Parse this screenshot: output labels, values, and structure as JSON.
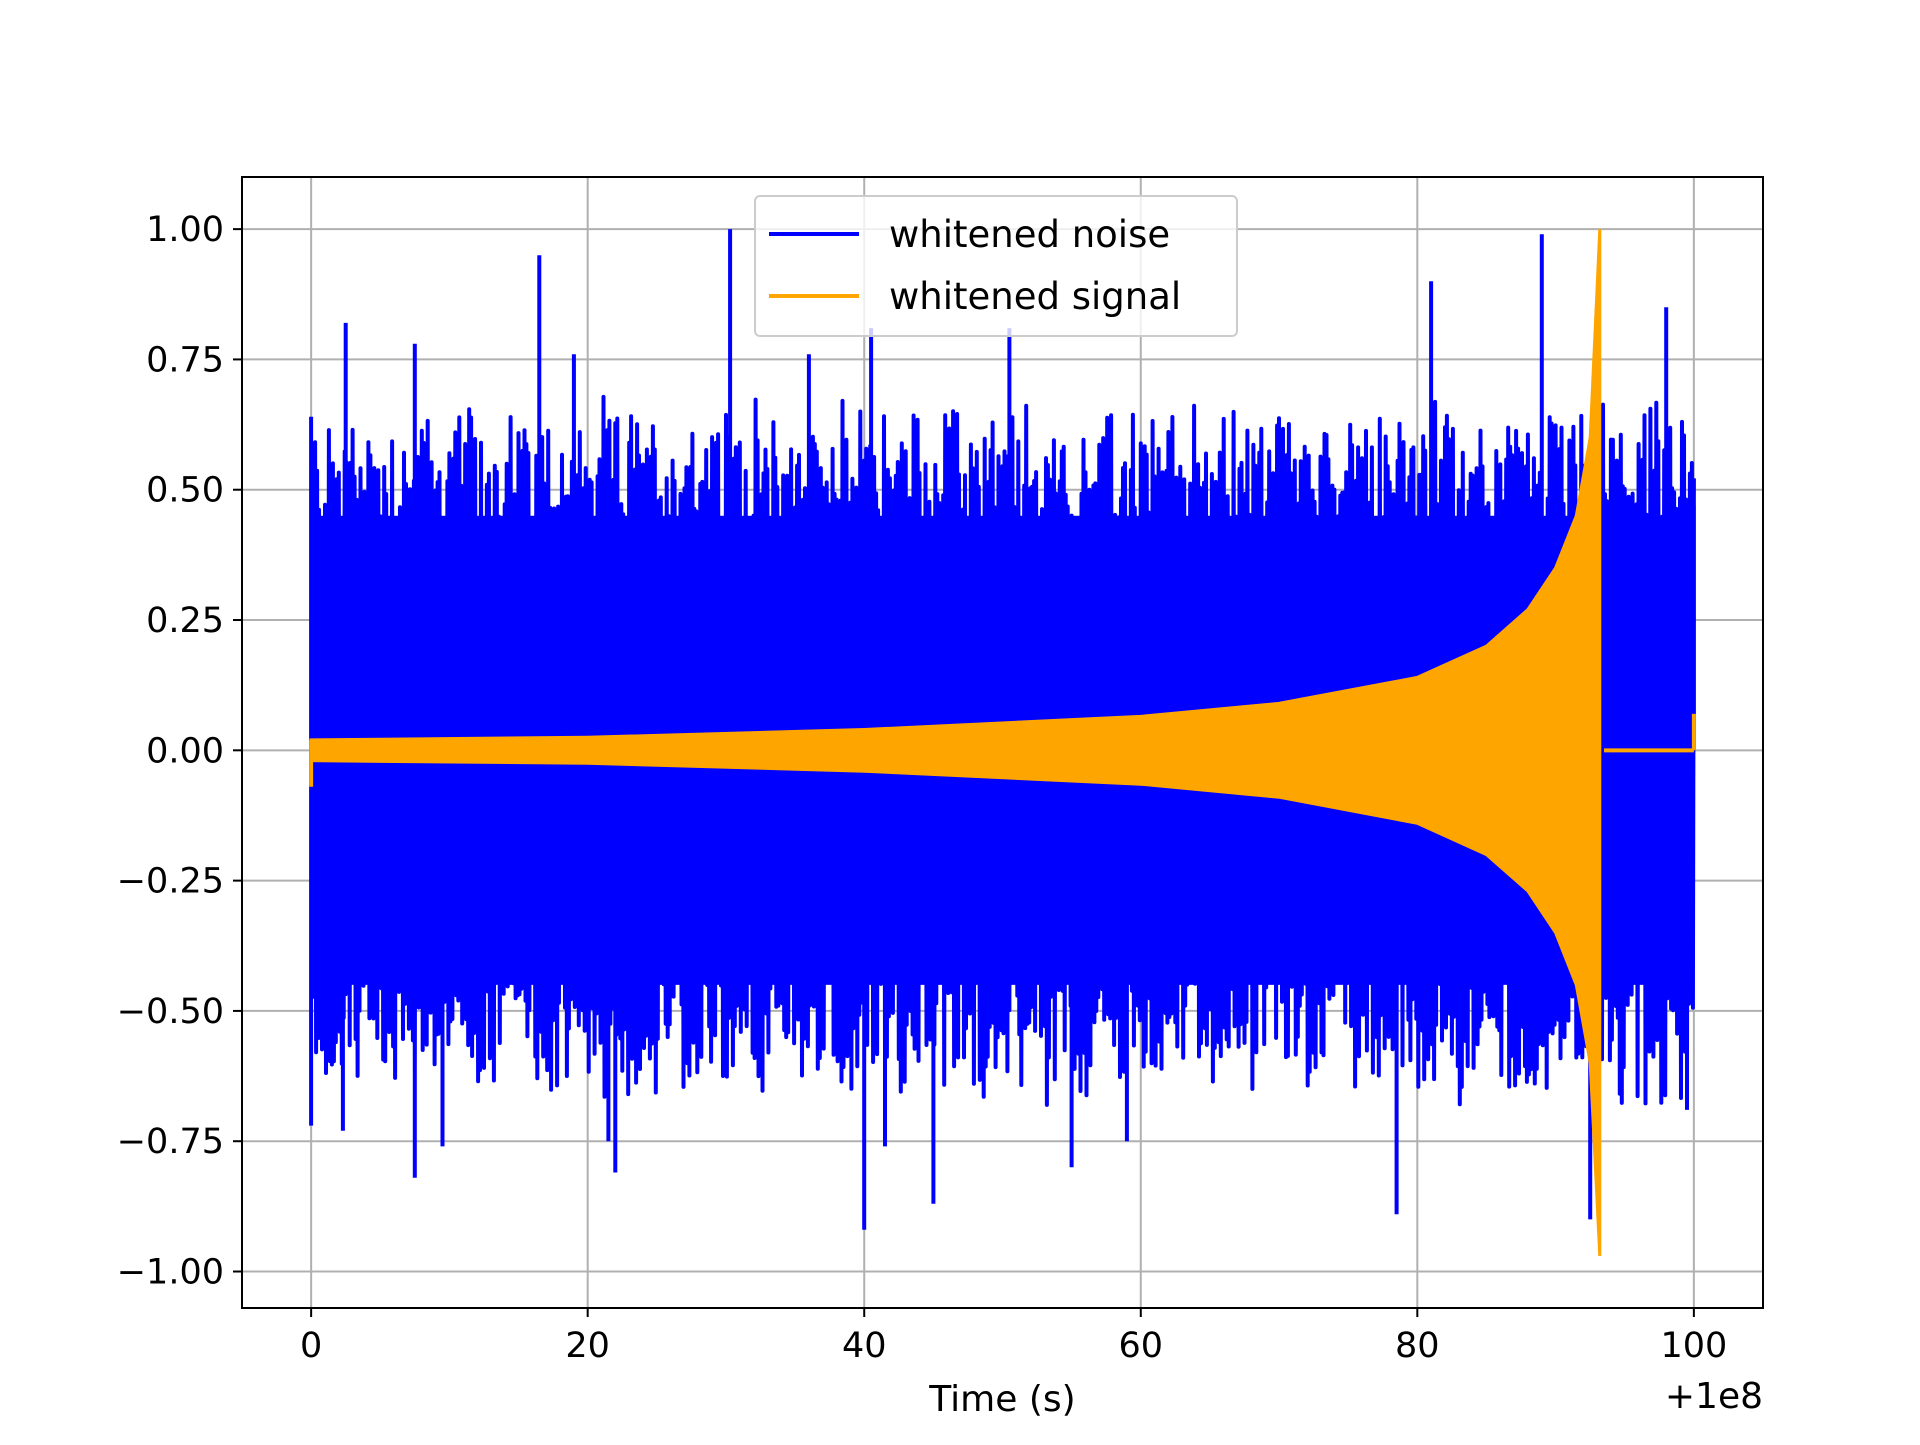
{
  "chart_data": {
    "type": "line",
    "title": "",
    "xlabel": "Time (s)",
    "ylabel": "",
    "x_offset_label": "+1e8",
    "xlim": [
      -5,
      105
    ],
    "ylim": [
      -1.07,
      1.1
    ],
    "x_ticks": [
      0,
      20,
      40,
      60,
      80,
      100
    ],
    "x_tick_labels": [
      "0",
      "20",
      "40",
      "60",
      "80",
      "100"
    ],
    "y_ticks": [
      1.0,
      0.75,
      0.5,
      0.25,
      0.0,
      -0.25,
      -0.5,
      -0.75,
      -1.0
    ],
    "y_tick_labels": [
      "1.00",
      "0.75",
      "0.50",
      "0.25",
      "0.00",
      "−0.25",
      "−0.50",
      "−0.75",
      "−1.00"
    ],
    "grid": true,
    "legend_position": "top-center",
    "series": [
      {
        "name": "whitened noise",
        "color": "#0000ff",
        "time_range": [
          0,
          100
        ],
        "typical_amplitude": 0.5,
        "peaks": [
          {
            "x": 0.0,
            "y": 0.64
          },
          {
            "x": 0.0,
            "y": -0.72
          },
          {
            "x": 2.5,
            "y": 0.82
          },
          {
            "x": 2.3,
            "y": -0.73
          },
          {
            "x": 7.5,
            "y": 0.78
          },
          {
            "x": 7.5,
            "y": -0.82
          },
          {
            "x": 9.5,
            "y": -0.76
          },
          {
            "x": 16.5,
            "y": 0.95
          },
          {
            "x": 19.0,
            "y": 0.76
          },
          {
            "x": 21.5,
            "y": -0.75
          },
          {
            "x": 22.0,
            "y": -0.81
          },
          {
            "x": 30.3,
            "y": 1.0
          },
          {
            "x": 36.0,
            "y": 0.76
          },
          {
            "x": 40.0,
            "y": -0.92
          },
          {
            "x": 40.5,
            "y": 0.81
          },
          {
            "x": 41.5,
            "y": -0.76
          },
          {
            "x": 45.0,
            "y": -0.87
          },
          {
            "x": 50.5,
            "y": 0.81
          },
          {
            "x": 55.0,
            "y": -0.8
          },
          {
            "x": 59.0,
            "y": -0.75
          },
          {
            "x": 78.5,
            "y": -0.89
          },
          {
            "x": 81.0,
            "y": 0.9
          },
          {
            "x": 89.0,
            "y": 0.99
          },
          {
            "x": 92.5,
            "y": -0.9
          },
          {
            "x": 98.0,
            "y": 0.85
          },
          {
            "x": 99.5,
            "y": -0.69
          },
          {
            "x": 100.0,
            "y": 0.47
          }
        ]
      },
      {
        "name": "whitened signal",
        "color": "#ffa500",
        "time_range": [
          0,
          93.5
        ],
        "envelope": [
          {
            "x": 0,
            "y": 0.02
          },
          {
            "x": 20,
            "y": 0.025
          },
          {
            "x": 40,
            "y": 0.04
          },
          {
            "x": 60,
            "y": 0.065
          },
          {
            "x": 70,
            "y": 0.09
          },
          {
            "x": 80,
            "y": 0.14
          },
          {
            "x": 85,
            "y": 0.2
          },
          {
            "x": 88,
            "y": 0.27
          },
          {
            "x": 90,
            "y": 0.35
          },
          {
            "x": 91.5,
            "y": 0.45
          },
          {
            "x": 92.5,
            "y": 0.6
          },
          {
            "x": 93.2,
            "y": 1.0
          }
        ],
        "min_value": -0.97
      }
    ]
  }
}
